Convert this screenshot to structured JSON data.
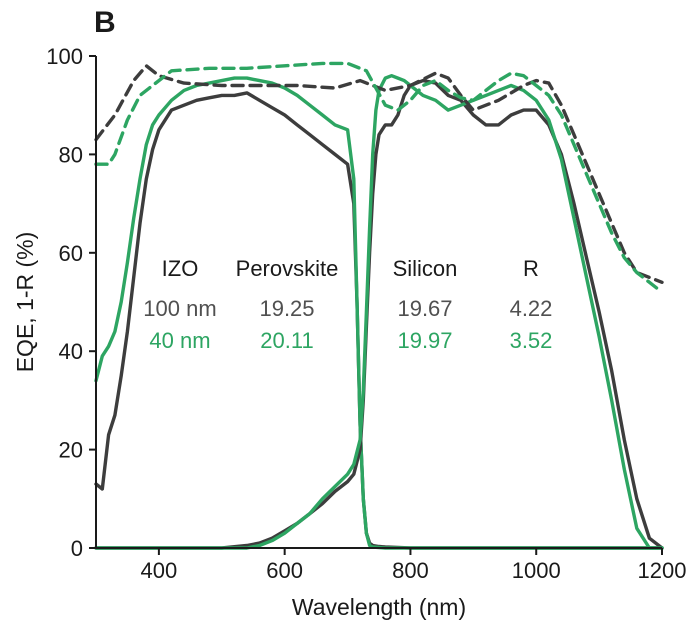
{
  "panel_label": "B",
  "colors": {
    "gray": "#3d3d3d",
    "green": "#2da562",
    "axis": "#1a1a1a"
  },
  "chart_data": {
    "type": "line",
    "xlabel": "Wavelength (nm)",
    "ylabel": "EQE, 1-R (%)",
    "xlim": [
      300,
      1200
    ],
    "ylim": [
      0,
      100
    ],
    "xticks": [
      400,
      600,
      800,
      1000,
      1200
    ],
    "yticks": [
      0,
      20,
      40,
      60,
      80,
      100
    ],
    "grid": false,
    "annotation_table": {
      "headers": [
        "IZO",
        "Perovskite",
        "Silicon",
        "R"
      ],
      "rows": [
        {
          "color": "gray",
          "cells": [
            "100 nm",
            "19.25",
            "19.67",
            "4.22"
          ]
        },
        {
          "color": "green",
          "cells": [
            "40 nm",
            "20.11",
            "19.97",
            "3.52"
          ]
        }
      ]
    },
    "series": [
      {
        "group": "100 nm",
        "kind": "perovskite_eqe",
        "color": "gray",
        "dash": false,
        "x": [
          300,
          310,
          320,
          330,
          340,
          350,
          360,
          370,
          380,
          390,
          400,
          420,
          440,
          460,
          480,
          500,
          520,
          540,
          560,
          580,
          600,
          620,
          640,
          660,
          680,
          700,
          710,
          715,
          720,
          725,
          730,
          735,
          740,
          750,
          760,
          780,
          800,
          850,
          900,
          950,
          1000,
          1100,
          1200
        ],
        "y": [
          13,
          12,
          23,
          27,
          35,
          44,
          55,
          66,
          75,
          81,
          85,
          89,
          90,
          91,
          91.5,
          92,
          92,
          92.5,
          91,
          89.5,
          88,
          86,
          84,
          82,
          80,
          78,
          70,
          50,
          25,
          10,
          3,
          1,
          0.5,
          0.3,
          0.2,
          0.1,
          0,
          0,
          0,
          0,
          0,
          0,
          0
        ]
      },
      {
        "group": "40 nm",
        "kind": "perovskite_eqe",
        "color": "green",
        "dash": false,
        "x": [
          300,
          310,
          320,
          330,
          340,
          350,
          360,
          370,
          380,
          390,
          400,
          420,
          440,
          460,
          480,
          500,
          520,
          540,
          560,
          580,
          600,
          620,
          640,
          660,
          680,
          700,
          710,
          715,
          720,
          725,
          730,
          735,
          740,
          750,
          760,
          780,
          800,
          850,
          900,
          950,
          1000,
          1100,
          1200
        ],
        "y": [
          34,
          39,
          41,
          44,
          50,
          58,
          67,
          75,
          82,
          86,
          88,
          91,
          93,
          94,
          94.5,
          95,
          95.5,
          95.5,
          95,
          94.5,
          93.5,
          92,
          90,
          88,
          86,
          85,
          75,
          50,
          25,
          10,
          3,
          0.5,
          0.2,
          0.1,
          0,
          0,
          0,
          0,
          0,
          0,
          0,
          0,
          0
        ]
      },
      {
        "group": "100 nm",
        "kind": "silicon_eqe",
        "color": "gray",
        "dash": false,
        "x": [
          300,
          400,
          500,
          540,
          560,
          580,
          600,
          620,
          640,
          660,
          680,
          700,
          710,
          720,
          725,
          730,
          735,
          740,
          745,
          750,
          760,
          770,
          780,
          790,
          800,
          820,
          840,
          860,
          880,
          900,
          920,
          940,
          960,
          980,
          1000,
          1020,
          1040,
          1060,
          1080,
          1100,
          1120,
          1140,
          1160,
          1180,
          1200
        ],
        "y": [
          0,
          0,
          0,
          0.5,
          1,
          2,
          3.5,
          5,
          7,
          9,
          11.5,
          13.5,
          15,
          20,
          30,
          45,
          60,
          72,
          80,
          84,
          86,
          86,
          88,
          92,
          94,
          95,
          94.5,
          92,
          91,
          88,
          86,
          86,
          88,
          89,
          89,
          86,
          80,
          70,
          59,
          48,
          36,
          22,
          10,
          2,
          0
        ]
      },
      {
        "group": "40 nm",
        "kind": "silicon_eqe",
        "color": "green",
        "dash": false,
        "x": [
          300,
          400,
          500,
          540,
          560,
          580,
          600,
          620,
          640,
          660,
          680,
          700,
          710,
          720,
          725,
          730,
          735,
          740,
          745,
          750,
          760,
          770,
          780,
          790,
          800,
          820,
          840,
          860,
          880,
          900,
          920,
          940,
          960,
          980,
          1000,
          1020,
          1040,
          1060,
          1080,
          1100,
          1120,
          1140,
          1160,
          1180,
          1200
        ],
        "y": [
          0,
          0,
          0,
          0,
          0.5,
          1.5,
          3,
          5,
          7,
          10,
          12.5,
          15,
          17,
          22,
          32,
          48,
          65,
          80,
          89,
          93,
          95.5,
          96,
          95.5,
          95,
          94,
          92,
          91,
          89,
          90,
          91,
          92,
          93,
          94,
          93,
          91,
          87,
          79,
          67,
          55,
          43,
          30,
          16,
          4,
          0,
          0
        ]
      },
      {
        "group": "100 nm",
        "kind": "one_minus_R",
        "color": "gray",
        "dash": true,
        "x": [
          300,
          330,
          360,
          380,
          400,
          440,
          500,
          560,
          620,
          680,
          720,
          760,
          800,
          840,
          860,
          880,
          900,
          940,
          980,
          1000,
          1020,
          1040,
          1060,
          1080,
          1100,
          1120,
          1140,
          1160,
          1180,
          1200
        ],
        "y": [
          83,
          88,
          95,
          98,
          96,
          94.5,
          94,
          94,
          94,
          93.5,
          95,
          93,
          94,
          96.5,
          95.5,
          92,
          89,
          91,
          94,
          95,
          94.5,
          90,
          84,
          78,
          72,
          66,
          60,
          56,
          55,
          54
        ]
      },
      {
        "group": "40 nm",
        "kind": "one_minus_R",
        "color": "green",
        "dash": true,
        "x": [
          300,
          320,
          330,
          350,
          370,
          390,
          420,
          480,
          540,
          600,
          660,
          700,
          730,
          760,
          780,
          800,
          820,
          840,
          860,
          880,
          900,
          920,
          940,
          960,
          980,
          1000,
          1020,
          1040,
          1060,
          1080,
          1100,
          1120,
          1140,
          1160,
          1180,
          1200
        ],
        "y": [
          78,
          78,
          80,
          87,
          92,
          94,
          97,
          97.5,
          97.5,
          98,
          98.5,
          98.5,
          97,
          90,
          89,
          91,
          94,
          95,
          93,
          91.5,
          91,
          93,
          95,
          96.5,
          96,
          94,
          92,
          88,
          82,
          76,
          70,
          64,
          59,
          56,
          54,
          52
        ]
      }
    ]
  }
}
